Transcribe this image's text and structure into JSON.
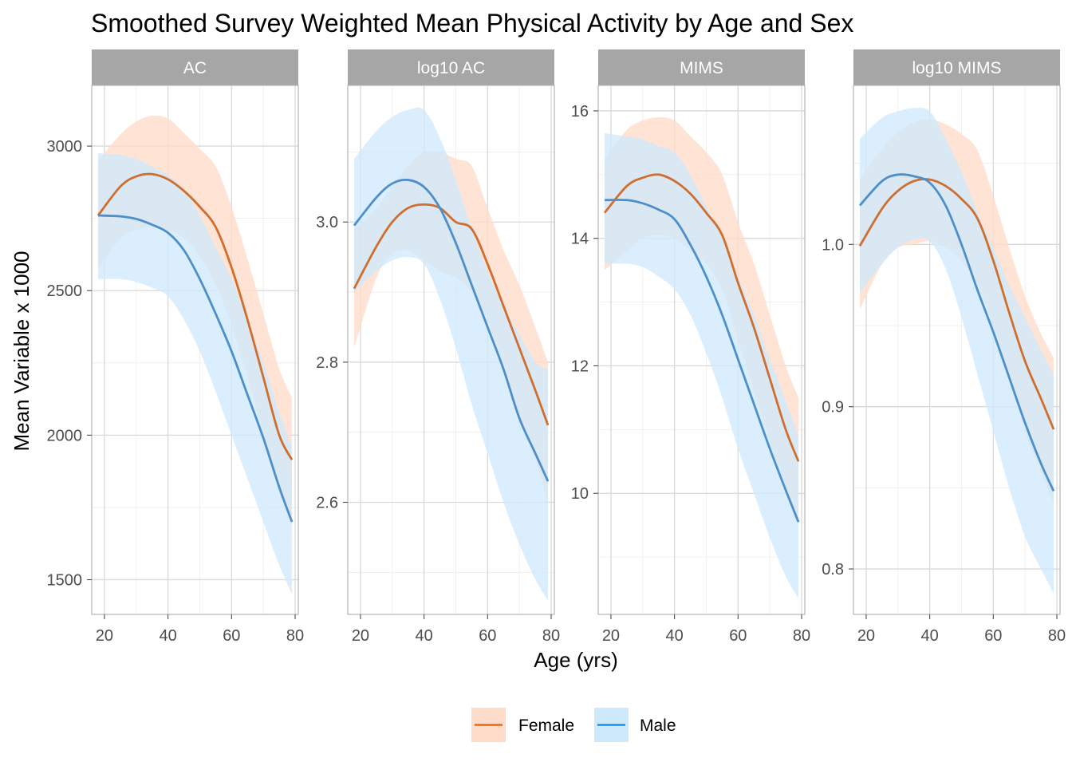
{
  "chart_data": {
    "type": "line",
    "title": "Smoothed Survey Weighted Mean Physical Activity by Age and Sex",
    "xlabel": "Age (yrs)",
    "ylabel": "Mean Variable x 1000",
    "legend_position": "bottom",
    "series_styles": [
      {
        "name": "Female",
        "line_color": "#f36f14",
        "line_color_on_band": "#cf6e2f",
        "band_color": "#ffdbc9"
      },
      {
        "name": "Male",
        "line_color": "#1c9bf0",
        "line_color_on_band": "#4d8fc9",
        "band_color": "#cfe9fc"
      }
    ],
    "band_overlap_color": "#d2d5d9",
    "grid": true,
    "panels": [
      {
        "strip": "AC",
        "xlim": [
          16,
          81
        ],
        "ylim": [
          1380,
          3210
        ],
        "xticks": [
          20,
          40,
          60,
          80
        ],
        "xtick_labels": [
          "20",
          "40",
          "60",
          "80"
        ],
        "yticks": [
          1500,
          2000,
          2500,
          3000
        ],
        "ytick_labels": [
          "1500",
          "2000",
          "2500",
          "3000"
        ],
        "series": [
          {
            "name": "Female",
            "x": [
              18,
              25,
              30,
              35,
              40,
              45,
              50,
              55,
              60,
              65,
              70,
              75,
              79
            ],
            "y": [
              2760,
              2860,
              2895,
              2903,
              2885,
              2845,
              2790,
              2720,
              2580,
              2400,
              2200,
              2000,
              1915
            ],
            "lower": [
              2570,
              2680,
              2710,
              2720,
              2710,
              2680,
              2620,
              2520,
              2380,
              2200,
              2000,
              1800,
              1700
            ],
            "upper": [
              2950,
              3040,
              3085,
              3105,
              3095,
              3045,
              2990,
              2930,
              2790,
              2610,
              2420,
              2230,
              2130
            ]
          },
          {
            "name": "Male",
            "x": [
              18,
              25,
              30,
              35,
              40,
              45,
              50,
              55,
              60,
              65,
              70,
              75,
              79
            ],
            "y": [
              2760,
              2757,
              2748,
              2728,
              2700,
              2640,
              2540,
              2420,
              2290,
              2140,
              1990,
              1820,
              1700
            ],
            "lower": [
              2540,
              2540,
              2530,
              2510,
              2480,
              2400,
              2290,
              2150,
              2000,
              1850,
              1700,
              1550,
              1450
            ],
            "upper": [
              2975,
              2970,
              2955,
              2930,
              2900,
              2850,
              2760,
              2650,
              2540,
              2400,
              2250,
              2080,
              1960
            ]
          }
        ]
      },
      {
        "strip": "log10 AC",
        "xlim": [
          16,
          81
        ],
        "ylim": [
          2.44,
          3.195
        ],
        "xticks": [
          20,
          40,
          60,
          80
        ],
        "xtick_labels": [
          "20",
          "40",
          "60",
          "80"
        ],
        "yticks": [
          2.6,
          2.8,
          3.0
        ],
        "ytick_labels": [
          "2.6",
          "2.8",
          "3.0"
        ],
        "series": [
          {
            "name": "Female",
            "x": [
              18,
              25,
              30,
              35,
              40,
              45,
              50,
              55,
              60,
              65,
              70,
              75,
              79
            ],
            "y": [
              2.905,
              2.965,
              3.0,
              3.02,
              3.025,
              3.02,
              3.0,
              2.99,
              2.94,
              2.88,
              2.82,
              2.76,
              2.71
            ],
            "lower": [
              2.82,
              2.92,
              2.955,
              2.96,
              2.945,
              2.93,
              2.92,
              2.9,
              2.86,
              2.79,
              2.72,
              2.66,
              2.6
            ],
            "upper": [
              2.99,
              3.02,
              3.05,
              3.08,
              3.1,
              3.1,
              3.09,
              3.08,
              3.02,
              2.96,
              2.91,
              2.85,
              2.8
            ]
          },
          {
            "name": "Male",
            "x": [
              18,
              25,
              30,
              35,
              40,
              45,
              50,
              55,
              60,
              65,
              70,
              75,
              79
            ],
            "y": [
              2.995,
              3.035,
              3.055,
              3.06,
              3.05,
              3.02,
              2.97,
              2.91,
              2.85,
              2.79,
              2.72,
              2.67,
              2.63
            ],
            "lower": [
              2.9,
              2.93,
              2.945,
              2.95,
              2.94,
              2.89,
              2.82,
              2.74,
              2.67,
              2.6,
              2.54,
              2.49,
              2.46
            ],
            "upper": [
              3.09,
              3.13,
              3.15,
              3.16,
              3.16,
              3.12,
              3.06,
              2.99,
              2.93,
              2.88,
              2.84,
              2.8,
              2.79
            ]
          }
        ]
      },
      {
        "strip": "MIMS",
        "xlim": [
          16,
          81
        ],
        "ylim": [
          8.1,
          16.4
        ],
        "xticks": [
          20,
          40,
          60,
          80
        ],
        "xtick_labels": [
          "20",
          "40",
          "60",
          "80"
        ],
        "yticks": [
          10,
          12,
          14,
          16
        ],
        "ytick_labels": [
          "10",
          "12",
          "14",
          "16"
        ],
        "series": [
          {
            "name": "Female",
            "x": [
              18,
              25,
              30,
              35,
              40,
              45,
              50,
              55,
              60,
              65,
              70,
              75,
              79
            ],
            "y": [
              14.4,
              14.82,
              14.95,
              15.0,
              14.9,
              14.7,
              14.4,
              14.05,
              13.3,
              12.6,
              11.8,
              11.0,
              10.5
            ],
            "lower": [
              13.5,
              13.8,
              14.0,
              14.05,
              14.0,
              13.8,
              13.6,
              13.2,
              12.4,
              11.6,
              10.8,
              10.0,
              9.5
            ],
            "upper": [
              15.25,
              15.7,
              15.85,
              15.9,
              15.85,
              15.6,
              15.35,
              15.0,
              14.25,
              13.6,
              12.8,
              12.0,
              11.5
            ]
          },
          {
            "name": "Male",
            "x": [
              18,
              25,
              30,
              35,
              40,
              45,
              50,
              55,
              60,
              65,
              70,
              75,
              79
            ],
            "y": [
              14.6,
              14.6,
              14.55,
              14.45,
              14.3,
              13.9,
              13.4,
              12.8,
              12.1,
              11.4,
              10.7,
              10.05,
              9.55
            ],
            "lower": [
              13.6,
              13.6,
              13.55,
              13.4,
              13.2,
              12.8,
              12.2,
              11.5,
              10.7,
              10.0,
              9.3,
              8.7,
              8.35
            ],
            "upper": [
              15.65,
              15.6,
              15.55,
              15.45,
              15.35,
              15.0,
              14.5,
              14.0,
              13.4,
              12.8,
              12.1,
              11.45,
              10.9
            ]
          }
        ]
      },
      {
        "strip": "log10 MIMS",
        "xlim": [
          16,
          81
        ],
        "ylim": [
          0.772,
          1.098
        ],
        "xticks": [
          20,
          40,
          60,
          80
        ],
        "xtick_labels": [
          "20",
          "40",
          "60",
          "80"
        ],
        "yticks": [
          0.8,
          0.9,
          1.0
        ],
        "ytick_labels": [
          "0.8",
          "0.9",
          "1.0"
        ],
        "series": [
          {
            "name": "Female",
            "x": [
              18,
              25,
              30,
              35,
              40,
              45,
              50,
              55,
              60,
              65,
              70,
              75,
              79
            ],
            "y": [
              0.999,
              1.022,
              1.033,
              1.039,
              1.04,
              1.036,
              1.028,
              1.016,
              0.99,
              0.958,
              0.928,
              0.905,
              0.886
            ],
            "lower": [
              0.96,
              0.988,
              0.998,
              1.0,
              1.002,
              0.998,
              0.99,
              0.975,
              0.95,
              0.918,
              0.885,
              0.86,
              0.84
            ],
            "upper": [
              1.04,
              1.059,
              1.069,
              1.075,
              1.077,
              1.074,
              1.068,
              1.058,
              1.03,
              0.998,
              0.968,
              0.945,
              0.93
            ]
          },
          {
            "name": "Male",
            "x": [
              18,
              25,
              30,
              35,
              40,
              45,
              50,
              55,
              60,
              65,
              70,
              75,
              79
            ],
            "y": [
              1.024,
              1.039,
              1.043,
              1.042,
              1.038,
              1.024,
              1.0,
              0.972,
              0.946,
              0.918,
              0.89,
              0.865,
              0.848
            ],
            "lower": [
              0.97,
              0.988,
              0.998,
              1.003,
              1.002,
              0.985,
              0.955,
              0.92,
              0.885,
              0.85,
              0.82,
              0.8,
              0.785
            ],
            "upper": [
              1.065,
              1.078,
              1.082,
              1.084,
              1.082,
              1.065,
              1.045,
              1.02,
              0.998,
              0.975,
              0.955,
              0.935,
              0.92
            ]
          }
        ]
      }
    ],
    "legend": [
      {
        "label": "Female"
      },
      {
        "label": "Male"
      }
    ]
  }
}
